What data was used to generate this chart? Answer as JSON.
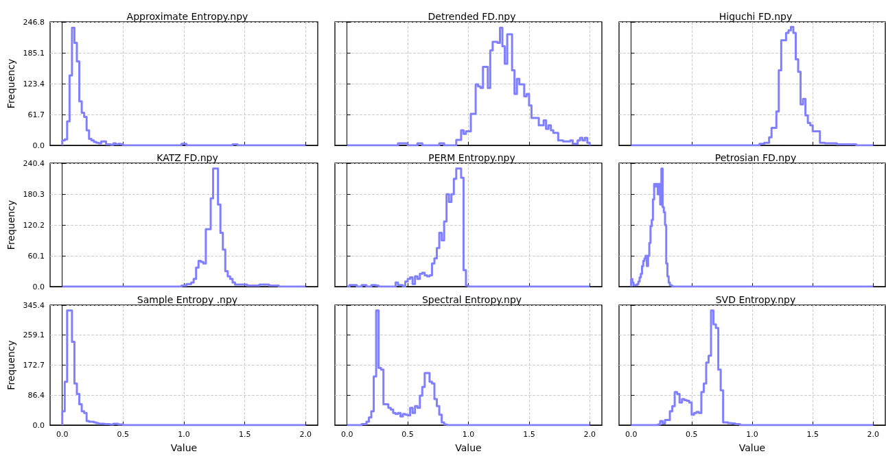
{
  "chart_data": [
    {
      "type": "histogram",
      "title": "Approximate Entropy.npy",
      "ylabel": "Frequency",
      "color": "#7f7fff",
      "grid": true,
      "tick_labels": "y",
      "xlim": [
        -0.1,
        2.1
      ],
      "xticks": [
        {
          "value": 0,
          "label": null
        },
        {
          "value": 0.5,
          "label": null
        },
        {
          "value": 1,
          "label": null
        },
        {
          "value": 1.5,
          "label": null
        },
        {
          "value": 2,
          "label": null
        }
      ],
      "ylim": [
        0,
        246.8
      ],
      "yticks": [
        {
          "value": 0,
          "label": "0.0"
        },
        61.7,
        123.4,
        185.1,
        246.8
      ],
      "bins": [
        0,
        0.02,
        0.04,
        0.06,
        0.08,
        0.1,
        0.12,
        0.14,
        0.16,
        0.18,
        0.2,
        0.22,
        0.24,
        0.26,
        0.28,
        0.3,
        0.32,
        0.34,
        0.36,
        0.38,
        0.4,
        0.42,
        0.44,
        0.46,
        0.48,
        0.5,
        0.98,
        1.02,
        1.4,
        1.44,
        2.0
      ],
      "values": [
        10,
        12,
        48,
        140,
        235,
        205,
        168,
        88,
        65,
        57,
        30,
        13,
        10,
        7,
        5,
        4,
        8,
        8,
        2,
        2,
        1,
        4,
        2,
        3,
        2,
        0,
        3,
        0,
        2,
        0
      ]
    },
    {
      "type": "histogram",
      "title": "Detrended FD.npy",
      "color": "#7f7fff",
      "grid": true,
      "tick_labels": false,
      "xlim": [
        -0.1,
        2.1
      ],
      "xticks": [
        {
          "value": 0,
          "label": null
        },
        {
          "value": 0.5,
          "label": null
        },
        {
          "value": 1,
          "label": null
        },
        {
          "value": 1.5,
          "label": null
        },
        {
          "value": 2,
          "label": null
        }
      ],
      "ylim": [
        0,
        246.8
      ],
      "yticks": [
        {
          "value": 0,
          "label": null
        },
        {
          "value": 61.7,
          "label": null
        },
        {
          "value": 123.4,
          "label": null
        },
        {
          "value": 185.1,
          "label": null
        },
        {
          "value": 246.8,
          "label": null
        }
      ],
      "bins": [
        0,
        0.42,
        0.5,
        0.58,
        0.62,
        0.76,
        0.8,
        0.9,
        0.92,
        0.94,
        0.96,
        0.98,
        1.0,
        1.02,
        1.04,
        1.06,
        1.08,
        1.1,
        1.12,
        1.14,
        1.16,
        1.18,
        1.2,
        1.22,
        1.24,
        1.26,
        1.28,
        1.3,
        1.32,
        1.34,
        1.36,
        1.38,
        1.4,
        1.42,
        1.44,
        1.46,
        1.48,
        1.5,
        1.52,
        1.54,
        1.56,
        1.58,
        1.6,
        1.62,
        1.64,
        1.66,
        1.68,
        1.7,
        1.72,
        1.74,
        1.76,
        1.78,
        1.8,
        1.82,
        1.84,
        1.86,
        1.88,
        1.9,
        1.92,
        1.94,
        1.96,
        1.98,
        2.0
      ],
      "values": [
        0,
        4,
        0,
        4,
        0,
        4,
        0,
        11,
        11,
        30,
        23,
        28,
        28,
        63,
        63,
        122,
        118,
        115,
        157,
        157,
        115,
        190,
        207,
        207,
        205,
        235,
        198,
        163,
        222,
        222,
        150,
        103,
        133,
        122,
        122,
        98,
        103,
        80,
        55,
        55,
        55,
        40,
        40,
        50,
        33,
        40,
        30,
        25,
        25,
        10,
        10,
        8,
        8,
        8,
        10,
        3,
        3,
        10,
        15,
        10,
        15,
        5
      ]
    },
    {
      "type": "histogram",
      "title": "Higuchi FD.npy",
      "color": "#7f7fff",
      "grid": true,
      "tick_labels": false,
      "xlim": [
        -0.1,
        2.1
      ],
      "xticks": [
        {
          "value": 0,
          "label": null
        },
        {
          "value": 0.5,
          "label": null
        },
        {
          "value": 1,
          "label": null
        },
        {
          "value": 1.5,
          "label": null
        },
        {
          "value": 2,
          "label": null
        }
      ],
      "ylim": [
        0,
        246.8
      ],
      "yticks": [
        {
          "value": 0,
          "label": null
        },
        {
          "value": 61.7,
          "label": null
        },
        {
          "value": 123.4,
          "label": null
        },
        {
          "value": 185.1,
          "label": null
        },
        {
          "value": 246.8,
          "label": null
        }
      ],
      "bins": [
        0,
        1.06,
        1.08,
        1.1,
        1.12,
        1.14,
        1.16,
        1.18,
        1.2,
        1.22,
        1.24,
        1.26,
        1.28,
        1.3,
        1.32,
        1.34,
        1.36,
        1.38,
        1.4,
        1.42,
        1.44,
        1.46,
        1.48,
        1.5,
        1.52,
        1.54,
        1.56,
        1.58,
        1.6,
        1.62,
        1.64,
        1.66,
        1.68,
        1.7,
        1.72,
        1.74,
        1.86,
        2.0
      ],
      "values": [
        0,
        3,
        3,
        5,
        5,
        16,
        35,
        35,
        68,
        150,
        210,
        210,
        225,
        230,
        237,
        225,
        172,
        147,
        82,
        93,
        60,
        45,
        40,
        28,
        28,
        28,
        5,
        5,
        4,
        4,
        4,
        4,
        4,
        2,
        2,
        2,
        0
      ]
    },
    {
      "type": "histogram",
      "title": "KATZ FD.npy",
      "ylabel": "Frequency",
      "color": "#7f7fff",
      "grid": true,
      "tick_labels": "y",
      "xlim": [
        -0.1,
        2.1
      ],
      "xticks": [
        {
          "value": 0,
          "label": null
        },
        {
          "value": 0.5,
          "label": null
        },
        {
          "value": 1,
          "label": null
        },
        {
          "value": 1.5,
          "label": null
        },
        {
          "value": 2,
          "label": null
        }
      ],
      "ylim": [
        0,
        240.4
      ],
      "yticks": [
        {
          "value": 0,
          "label": "0.0"
        },
        60.1,
        120.2,
        180.3,
        240.4
      ],
      "bins": [
        0,
        0.98,
        1.0,
        1.02,
        1.04,
        1.06,
        1.08,
        1.1,
        1.12,
        1.14,
        1.16,
        1.18,
        1.2,
        1.22,
        1.24,
        1.26,
        1.28,
        1.3,
        1.32,
        1.34,
        1.36,
        1.38,
        1.4,
        1.42,
        1.44,
        1.46,
        1.48,
        1.5,
        1.52,
        1.54,
        1.56,
        1.58,
        1.6,
        1.62,
        1.64,
        1.66,
        1.68,
        1.7,
        1.72,
        1.74,
        1.76,
        1.78,
        2.0
      ],
      "values": [
        0,
        2,
        2,
        5,
        5,
        8,
        15,
        37,
        50,
        48,
        45,
        112,
        112,
        172,
        230,
        230,
        160,
        105,
        72,
        30,
        20,
        15,
        8,
        4,
        4,
        4,
        4,
        4,
        2,
        2,
        2,
        2,
        2,
        4,
        4,
        4,
        4,
        2,
        2,
        2,
        2,
        0
      ]
    },
    {
      "type": "histogram",
      "title": "PERM Entropy.npy",
      "color": "#7f7fff",
      "grid": true,
      "tick_labels": false,
      "xlim": [
        -0.1,
        2.1
      ],
      "xticks": [
        {
          "value": 0,
          "label": null
        },
        {
          "value": 0.5,
          "label": null
        },
        {
          "value": 1,
          "label": null
        },
        {
          "value": 1.5,
          "label": null
        },
        {
          "value": 2,
          "label": null
        }
      ],
      "ylim": [
        0,
        240.4
      ],
      "yticks": [
        {
          "value": 0,
          "label": null
        },
        {
          "value": 60.1,
          "label": null
        },
        {
          "value": 120.2,
          "label": null
        },
        {
          "value": 180.3,
          "label": null
        },
        {
          "value": 240.4,
          "label": null
        }
      ],
      "bins": [
        0,
        0.02,
        0.04,
        0.06,
        0.08,
        0.1,
        0.12,
        0.14,
        0.16,
        0.18,
        0.2,
        0.22,
        0.24,
        0.26,
        0.28,
        0.3,
        0.32,
        0.34,
        0.36,
        0.38,
        0.4,
        0.42,
        0.44,
        0.46,
        0.48,
        0.5,
        0.52,
        0.54,
        0.56,
        0.58,
        0.6,
        0.62,
        0.64,
        0.66,
        0.68,
        0.7,
        0.72,
        0.74,
        0.76,
        0.78,
        0.8,
        0.82,
        0.84,
        0.86,
        0.88,
        0.9,
        0.92,
        0.94,
        0.96,
        0.98,
        1.0,
        2.0
      ],
      "values": [
        0,
        3,
        3,
        3,
        0,
        0,
        3,
        3,
        0,
        0,
        3,
        3,
        2,
        0,
        0,
        0,
        0,
        0,
        0,
        0,
        8,
        3,
        3,
        0,
        10,
        15,
        18,
        5,
        20,
        15,
        25,
        27,
        22,
        20,
        22,
        45,
        55,
        75,
        105,
        90,
        127,
        180,
        165,
        180,
        210,
        230,
        230,
        212,
        32,
        2,
        0
      ]
    },
    {
      "type": "histogram",
      "title": "Petrosian FD.npy",
      "color": "#7f7fff",
      "grid": true,
      "tick_labels": false,
      "xlim": [
        -0.1,
        2.1
      ],
      "xticks": [
        {
          "value": 0,
          "label": null
        },
        {
          "value": 0.5,
          "label": null
        },
        {
          "value": 1,
          "label": null
        },
        {
          "value": 1.5,
          "label": null
        },
        {
          "value": 2,
          "label": null
        }
      ],
      "ylim": [
        0,
        240.4
      ],
      "yticks": [
        {
          "value": 0,
          "label": null
        },
        {
          "value": 60.1,
          "label": null
        },
        {
          "value": 120.2,
          "label": null
        },
        {
          "value": 180.3,
          "label": null
        },
        {
          "value": 240.4,
          "label": null
        }
      ],
      "bins": [
        0,
        0.01,
        0.02,
        0.03,
        0.04,
        0.05,
        0.06,
        0.07,
        0.08,
        0.09,
        0.1,
        0.11,
        0.12,
        0.13,
        0.14,
        0.15,
        0.16,
        0.17,
        0.18,
        0.19,
        0.2,
        0.21,
        0.22,
        0.23,
        0.24,
        0.25,
        0.26,
        0.27,
        0.28,
        0.29,
        0.3,
        0.31,
        0.32,
        0.33,
        0.34,
        2.0
      ],
      "values": [
        15,
        8,
        3,
        3,
        3,
        5,
        10,
        18,
        25,
        40,
        50,
        55,
        60,
        40,
        60,
        85,
        118,
        130,
        170,
        200,
        195,
        200,
        180,
        200,
        160,
        230,
        155,
        145,
        120,
        45,
        20,
        8,
        3,
        2,
        0
      ]
    },
    {
      "type": "histogram",
      "title": "Sample Entropy .npy",
      "xlabel": "Value",
      "ylabel": "Frequency",
      "color": "#7f7fff",
      "grid": true,
      "xlim": [
        -0.1,
        2.1
      ],
      "xticks": [
        {
          "value": 0,
          "label": "0.0"
        },
        {
          "value": 0.5,
          "label": "0.5"
        },
        {
          "value": 1,
          "label": "1.0"
        },
        {
          "value": 1.5,
          "label": "1.5"
        },
        {
          "value": 2,
          "label": "2.0"
        }
      ],
      "ylim": [
        0,
        345.4
      ],
      "yticks": [
        {
          "value": 0,
          "label": "0.0"
        },
        86.4,
        172.7,
        259.1,
        345.4
      ],
      "bins": [
        0,
        0.02,
        0.04,
        0.06,
        0.08,
        0.1,
        0.12,
        0.14,
        0.16,
        0.18,
        0.2,
        0.22,
        0.24,
        0.26,
        0.28,
        0.3,
        0.32,
        0.34,
        0.36,
        0.38,
        0.4,
        0.42,
        0.44,
        0.46,
        0.48,
        0.5,
        2.0
      ],
      "values": [
        40,
        125,
        330,
        330,
        240,
        120,
        90,
        60,
        40,
        35,
        12,
        10,
        10,
        8,
        6,
        4,
        4,
        3,
        3,
        2,
        2,
        4,
        4,
        2,
        2,
        0
      ]
    },
    {
      "type": "histogram",
      "title": "Spectral Entropy.npy",
      "xlabel": "Value",
      "color": "#7f7fff",
      "grid": true,
      "tick_labels": "x",
      "xlim": [
        -0.1,
        2.1
      ],
      "xticks": [
        {
          "value": 0,
          "label": "0.0"
        },
        {
          "value": 0.5,
          "label": "0.5"
        },
        {
          "value": 1,
          "label": "1.0"
        },
        {
          "value": 1.5,
          "label": "1.5"
        },
        {
          "value": 2,
          "label": "2.0"
        }
      ],
      "ylim": [
        0,
        345.4
      ],
      "yticks": [
        {
          "value": 0,
          "label": null
        },
        {
          "value": 86.4,
          "label": null
        },
        {
          "value": 172.7,
          "label": null
        },
        {
          "value": 259.1,
          "label": null
        },
        {
          "value": 345.4,
          "label": null
        }
      ],
      "bins": [
        0,
        0.12,
        0.14,
        0.16,
        0.18,
        0.2,
        0.22,
        0.24,
        0.26,
        0.28,
        0.3,
        0.32,
        0.34,
        0.36,
        0.38,
        0.4,
        0.42,
        0.44,
        0.46,
        0.48,
        0.5,
        0.52,
        0.54,
        0.56,
        0.58,
        0.6,
        0.62,
        0.64,
        0.66,
        0.68,
        0.7,
        0.72,
        0.74,
        0.76,
        0.78,
        0.8,
        0.82,
        2.0
      ],
      "values": [
        0,
        3,
        3,
        10,
        22,
        40,
        140,
        330,
        165,
        160,
        60,
        60,
        50,
        45,
        35,
        32,
        35,
        25,
        32,
        30,
        28,
        50,
        35,
        55,
        50,
        85,
        110,
        150,
        150,
        125,
        120,
        75,
        55,
        30,
        8,
        2,
        0
      ]
    },
    {
      "type": "histogram",
      "title": "SVD Entropy.npy",
      "xlabel": "Value",
      "color": "#7f7fff",
      "grid": true,
      "tick_labels": "x",
      "xlim": [
        -0.1,
        2.1
      ],
      "xticks": [
        {
          "value": 0,
          "label": "0.0"
        },
        {
          "value": 0.5,
          "label": "0.5"
        },
        {
          "value": 1,
          "label": "1.0"
        },
        {
          "value": 1.5,
          "label": "1.5"
        },
        {
          "value": 2,
          "label": "2.0"
        }
      ],
      "ylim": [
        0,
        345.4
      ],
      "yticks": [
        {
          "value": 0,
          "label": null
        },
        {
          "value": 86.4,
          "label": null
        },
        {
          "value": 172.7,
          "label": null
        },
        {
          "value": 259.1,
          "label": null
        },
        {
          "value": 345.4,
          "label": null
        }
      ],
      "bins": [
        0,
        0.22,
        0.24,
        0.26,
        0.28,
        0.3,
        0.32,
        0.34,
        0.36,
        0.38,
        0.4,
        0.42,
        0.44,
        0.46,
        0.48,
        0.5,
        0.52,
        0.54,
        0.56,
        0.58,
        0.6,
        0.62,
        0.64,
        0.66,
        0.68,
        0.7,
        0.72,
        0.74,
        0.76,
        0.78,
        0.8,
        0.82,
        0.84,
        0.86,
        0.88,
        0.9,
        2.0
      ],
      "values": [
        0,
        2,
        12,
        5,
        15,
        15,
        40,
        55,
        95,
        90,
        65,
        75,
        72,
        70,
        65,
        30,
        35,
        38,
        35,
        95,
        120,
        180,
        200,
        330,
        290,
        280,
        160,
        100,
        8,
        8,
        6,
        5,
        5,
        3,
        3,
        0
      ]
    }
  ]
}
